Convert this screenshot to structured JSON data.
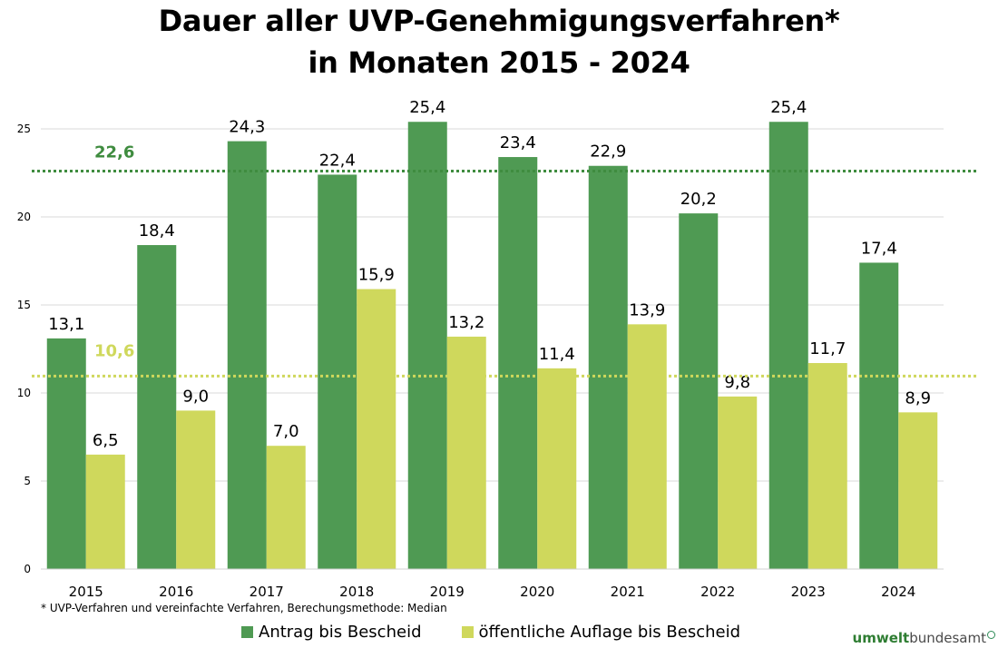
{
  "colors": {
    "series1": "#4f9a53",
    "series2": "#cfd85c",
    "ref1": "#3f8c3f",
    "ref2": "#cfd85c",
    "grid": "#d9d9d9"
  },
  "chart_data": {
    "type": "bar",
    "title_line1": "Dauer aller UVP-Genehmigungsverfahren*",
    "title_line2": "in Monaten 2015 - 2024",
    "categories": [
      "2015",
      "2016",
      "2017",
      "2018",
      "2019",
      "2020",
      "2021",
      "2022",
      "2023",
      "2024"
    ],
    "series": [
      {
        "name": "Antrag bis Bescheid",
        "values": [
          13.1,
          18.4,
          24.3,
          22.4,
          25.4,
          23.4,
          22.9,
          20.2,
          25.4,
          17.4
        ],
        "labels": [
          "13,1",
          "18,4",
          "24,3",
          "22,4",
          "25,4",
          "23,4",
          "22,9",
          "20,2",
          "25,4",
          "17,4"
        ]
      },
      {
        "name": "öffentliche Auflage bis Bescheid",
        "values": [
          6.5,
          9.0,
          7.0,
          15.9,
          13.2,
          11.4,
          13.9,
          9.8,
          11.7,
          8.9
        ],
        "labels": [
          "6,5",
          "9,0",
          "7,0",
          "15,9",
          "13,2",
          "11,4",
          "13,9",
          "9,8",
          "11,7",
          "8,9"
        ]
      }
    ],
    "reference_lines": [
      {
        "value": 22.6,
        "label": "22,6",
        "series": "Antrag bis Bescheid"
      },
      {
        "value": 10.6,
        "label": "10,6",
        "series": "öffentliche Auflage bis Bescheid"
      }
    ],
    "yticks": [
      0,
      5,
      10,
      15,
      20,
      25
    ],
    "ylim": [
      0,
      27.5
    ],
    "grid": true,
    "legend_position": "bottom",
    "xlabel": "",
    "ylabel": ""
  },
  "footnote": "* UVP-Verfahren und vereinfachte Verfahren, Berechungsmethode: Median",
  "logo": {
    "part1": "umwelt",
    "part2": "bundesamt"
  }
}
